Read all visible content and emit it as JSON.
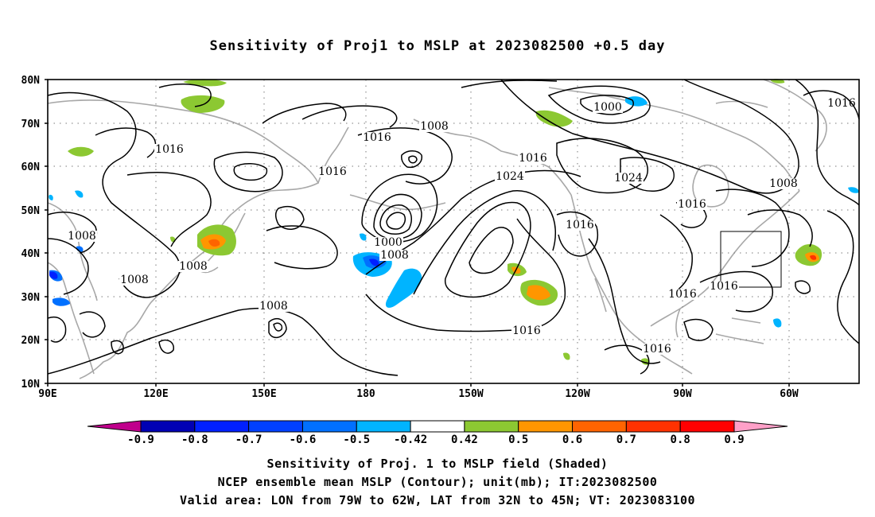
{
  "title": "Sensitivity of Proj1 to MSLP at 2023082500 +0.5 day",
  "lat_labels": [
    "80N",
    "70N",
    "60N",
    "50N",
    "40N",
    "30N",
    "20N",
    "10N"
  ],
  "lon_labels": [
    "90E",
    "120E",
    "150E",
    "180",
    "150W",
    "120W",
    "90W",
    "60W"
  ],
  "contour_labels": [
    "1016",
    "1008",
    "1016",
    "1016",
    "1008",
    "1016",
    "1024",
    "1024",
    "1016",
    "1000",
    "1008",
    "1008",
    "1008",
    "1008",
    "1000",
    "1008",
    "1016",
    "1016",
    "1016",
    "1016",
    "1016"
  ],
  "colorbar": {
    "tick_labels": [
      "-0.9",
      "-0.8",
      "-0.7",
      "-0.6",
      "-0.5",
      "-0.42",
      "0.42",
      "0.5",
      "0.6",
      "0.7",
      "0.8",
      "0.9"
    ],
    "colors": [
      "#c0008c",
      "#0000b4",
      "#0020ff",
      "#0040ff",
      "#0070ff",
      "#00b4ff",
      "#ffffff",
      "#8cc832",
      "#ff9600",
      "#ff6400",
      "#ff3200",
      "#ff0000",
      "#ffa0c8"
    ]
  },
  "captions": [
    "Sensitivity of Proj. 1 to MSLP field (Shaded)",
    "NCEP ensemble mean MSLP (Contour); unit(mb); IT:2023082500",
    "Valid area: LON from 79W to 62W, LAT from 32N to 45N; VT: 2023083100"
  ]
}
